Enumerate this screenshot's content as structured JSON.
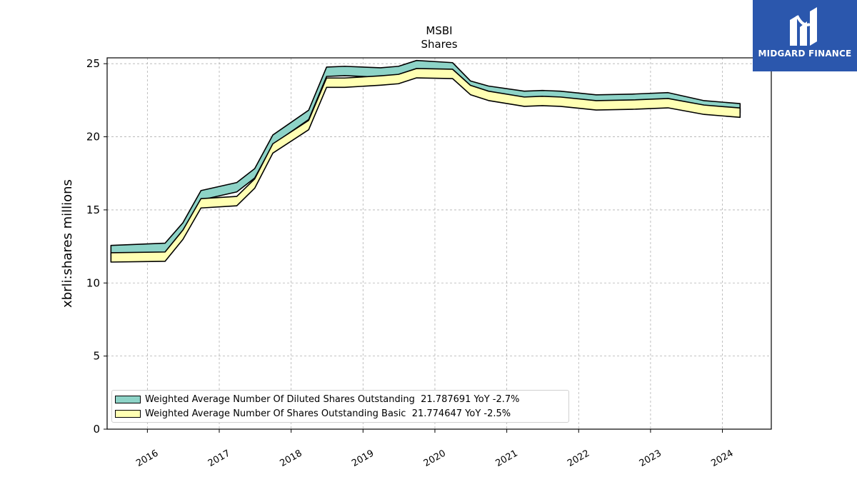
{
  "chart_data": {
    "type": "area",
    "title": "MSBI",
    "subtitle": "Shares",
    "xlabel": "",
    "ylabel": "xbrli:shares millions",
    "ylim": [
      0,
      25.4
    ],
    "xlim": [
      2015.44,
      2024.68
    ],
    "yticks": [
      0,
      5,
      10,
      15,
      20,
      25
    ],
    "xticks": [
      "2016",
      "2017",
      "2018",
      "2019",
      "2020",
      "2021",
      "2022",
      "2023",
      "2024"
    ],
    "grid": true,
    "legend_position": "lower-left",
    "series": [
      {
        "name": "Weighted Average Number Of Diluted Shares Outstanding",
        "legend_label": "Weighted Average Number Of Diluted Shares Outstanding  21.787691 YoY -2.7%",
        "color": "#8dd3c7",
        "points": [
          [
            "2015-06-30",
            12.25
          ],
          [
            "2016-03-31",
            12.4
          ],
          [
            "2016-06-30",
            13.8
          ],
          [
            "2016-09-30",
            16.0
          ],
          [
            "2017-03-31",
            16.55
          ],
          [
            "2017-06-30",
            17.5
          ],
          [
            "2017-09-30",
            19.8
          ],
          [
            "2018-03-31",
            21.5
          ],
          [
            "2018-06-30",
            24.45
          ],
          [
            "2018-09-30",
            24.5
          ],
          [
            "2019-03-31",
            24.4
          ],
          [
            "2019-06-30",
            24.5
          ],
          [
            "2019-09-30",
            24.9
          ],
          [
            "2020-03-31",
            24.75
          ],
          [
            "2020-06-30",
            23.5
          ],
          [
            "2020-09-30",
            23.15
          ],
          [
            "2021-03-31",
            22.8
          ],
          [
            "2021-06-30",
            22.85
          ],
          [
            "2021-09-30",
            22.8
          ],
          [
            "2022-03-31",
            22.55
          ],
          [
            "2022-09-30",
            22.6
          ],
          [
            "2023-03-31",
            22.7
          ],
          [
            "2023-09-30",
            22.15
          ],
          [
            "2024-03-31",
            21.95
          ]
        ]
      },
      {
        "name": "Weighted Average Number Of Shares Outstanding Basic",
        "legend_label": "Weighted Average Number Of Shares Outstanding Basic  21.774647 YoY -2.5%",
        "color": "#ffffb3",
        "points": [
          [
            "2015-06-30",
            11.75
          ],
          [
            "2016-03-31",
            11.8
          ],
          [
            "2016-06-30",
            13.3
          ],
          [
            "2016-09-30",
            15.45
          ],
          [
            "2017-03-31",
            15.6
          ],
          [
            "2017-06-30",
            16.8
          ],
          [
            "2017-09-30",
            19.2
          ],
          [
            "2018-03-31",
            20.8
          ],
          [
            "2018-06-30",
            23.7
          ],
          [
            "2018-09-30",
            23.7
          ],
          [
            "2019-03-31",
            23.85
          ],
          [
            "2019-06-30",
            23.95
          ],
          [
            "2019-09-30",
            24.35
          ],
          [
            "2020-03-31",
            24.3
          ],
          [
            "2020-06-30",
            23.2
          ],
          [
            "2020-09-30",
            22.8
          ],
          [
            "2021-03-31",
            22.4
          ],
          [
            "2021-06-30",
            22.45
          ],
          [
            "2021-09-30",
            22.4
          ],
          [
            "2022-03-31",
            22.15
          ],
          [
            "2022-09-30",
            22.2
          ],
          [
            "2023-03-31",
            22.3
          ],
          [
            "2023-09-30",
            21.85
          ],
          [
            "2024-03-31",
            21.65
          ]
        ]
      }
    ],
    "band_thickness": 0.32
  },
  "logo": {
    "text": "MIDGARD FINANCE",
    "background": "#2b57ad"
  }
}
